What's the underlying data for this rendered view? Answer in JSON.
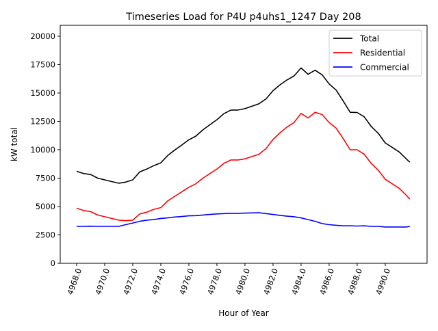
{
  "chart_data": {
    "type": "line",
    "title": "Timeseries Load for P4U p4uhs1_1247  Day 208",
    "xlabel": "Hour of Year",
    "ylabel": "kW total",
    "xlim": [
      4966.83,
      4992.98
    ],
    "ylim": [
      0,
      20960
    ],
    "xticks": [
      4968,
      4970,
      4972,
      4974,
      4976,
      4978,
      4980,
      4982,
      4984,
      4986,
      4988,
      4990
    ],
    "xtick_labels": [
      "4968.0",
      "4970.0",
      "4972.0",
      "4974.0",
      "4976.0",
      "4978.0",
      "4980.0",
      "4982.0",
      "4984.0",
      "4986.0",
      "4988.0",
      "4990.0"
    ],
    "yticks": [
      0,
      2500,
      5000,
      7500,
      10000,
      12500,
      15000,
      17500,
      20000
    ],
    "ytick_labels": [
      "0",
      "2500",
      "5000",
      "7500",
      "10000",
      "12500",
      "15000",
      "17500",
      "20000"
    ],
    "grid": false,
    "legend_position": "top-right",
    "x": [
      4968,
      4968.5,
      4969,
      4969.5,
      4970,
      4970.5,
      4971,
      4971.5,
      4972,
      4972.5,
      4973,
      4973.5,
      4974,
      4974.5,
      4975,
      4975.5,
      4976,
      4976.5,
      4977,
      4977.5,
      4978,
      4978.5,
      4979,
      4979.5,
      4980,
      4980.5,
      4981,
      4981.5,
      4982,
      4982.5,
      4983,
      4983.5,
      4984,
      4984.5,
      4985,
      4985.5,
      4986,
      4986.5,
      4987,
      4987.5,
      4988,
      4988.5,
      4989,
      4989.5,
      4990,
      4990.5,
      4991,
      4991.5,
      4991.75
    ],
    "series": [
      {
        "name": "Total",
        "color": "#000000",
        "values": [
          8100,
          7900,
          7820,
          7500,
          7350,
          7200,
          7050,
          7150,
          7350,
          8050,
          8300,
          8600,
          8850,
          9500,
          9980,
          10420,
          10880,
          11200,
          11750,
          12200,
          12650,
          13180,
          13500,
          13500,
          13620,
          13840,
          14050,
          14480,
          15200,
          15720,
          16150,
          16500,
          17200,
          16650,
          17000,
          16600,
          15800,
          15250,
          14300,
          13300,
          13280,
          12900,
          12050,
          11450,
          10600,
          10200,
          9800,
          9200,
          8900
        ]
      },
      {
        "name": "Residential",
        "color": "#ff0000",
        "values": [
          4850,
          4650,
          4550,
          4250,
          4100,
          3950,
          3800,
          3750,
          3800,
          4350,
          4500,
          4750,
          4900,
          5500,
          5900,
          6300,
          6700,
          7000,
          7500,
          7900,
          8300,
          8800,
          9100,
          9100,
          9200,
          9400,
          9600,
          10100,
          10900,
          11500,
          12000,
          12400,
          13200,
          12800,
          13300,
          13100,
          12400,
          11900,
          11000,
          10000,
          10000,
          9600,
          8800,
          8200,
          7400,
          7000,
          6600,
          6000,
          5650
        ]
      },
      {
        "name": "Commercial",
        "color": "#0000ff",
        "values": [
          3250,
          3250,
          3270,
          3250,
          3250,
          3250,
          3250,
          3400,
          3550,
          3700,
          3800,
          3850,
          3950,
          4000,
          4080,
          4120,
          4180,
          4200,
          4250,
          4300,
          4350,
          4380,
          4400,
          4400,
          4420,
          4440,
          4450,
          4380,
          4300,
          4220,
          4150,
          4100,
          4000,
          3850,
          3700,
          3500,
          3400,
          3350,
          3300,
          3300,
          3280,
          3300,
          3250,
          3250,
          3200,
          3200,
          3200,
          3200,
          3250
        ]
      }
    ]
  }
}
